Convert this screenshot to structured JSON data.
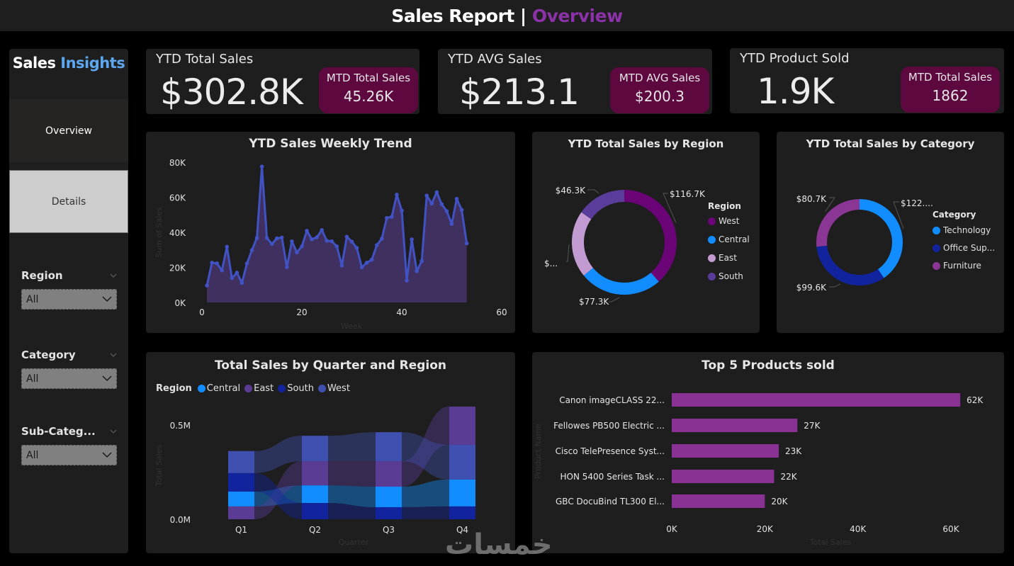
{
  "header": {
    "title_main": "Sales Report |",
    "title_accent": "Overview"
  },
  "sidebar": {
    "brand_main": "Sales",
    "brand_accent": "Insights",
    "nav": [
      {
        "label": "Overview"
      },
      {
        "label": "Details"
      }
    ],
    "slicers": [
      {
        "label": "Region",
        "value": "All"
      },
      {
        "label": "Category",
        "value": "All"
      },
      {
        "label": "Sub-Categ...",
        "value": "All"
      }
    ]
  },
  "kpis": [
    {
      "title": "YTD Total Sales",
      "value": "$302.8K",
      "badge_title": "MTD Total Sales",
      "badge_value": "45.26K"
    },
    {
      "title": "YTD AVG Sales",
      "value": "$213.1",
      "badge_title": "MTD AVG Sales",
      "badge_value": "$200.3"
    },
    {
      "title": "YTD Product Sold",
      "value": "1.9K",
      "badge_title": "MTD Total Sales",
      "badge_value": "1862"
    }
  ],
  "colors": {
    "accent_purple": "#8b32a8",
    "accent_blue": "#5ca7f0",
    "badge": "#5e0840",
    "line": "#4153c4",
    "area": "#40305f",
    "west": "#6a0477",
    "central": "#118dff",
    "east": "#c39bd3",
    "south": "#5a3d9a",
    "technology": "#118dff",
    "office_supplies": "#12239e",
    "furniture": "#8a3694",
    "bar": "#8a3194",
    "ribbon_central": "#118dff",
    "ribbon_east": "#5b3c95",
    "ribbon_south": "#12239e",
    "ribbon_west": "#4050b0"
  },
  "chart_data": [
    {
      "id": "weekly_trend",
      "type": "area",
      "title": "YTD Sales Weekly Trend",
      "xlabel": "Week",
      "ylabel": "Sum of Sales",
      "xlim": [
        0,
        60
      ],
      "ylim": [
        0,
        80000
      ],
      "xticks": [
        0,
        20,
        40,
        60
      ],
      "yticks": [
        0,
        20000,
        40000,
        60000,
        80000
      ],
      "ytick_labels": [
        "0K",
        "20K",
        "40K",
        "60K",
        "80K"
      ],
      "x": [
        1,
        2,
        3,
        4,
        5,
        6,
        7,
        8,
        9,
        10,
        11,
        12,
        13,
        14,
        15,
        16,
        17,
        18,
        19,
        20,
        21,
        22,
        23,
        24,
        25,
        26,
        27,
        28,
        29,
        30,
        31,
        32,
        33,
        34,
        35,
        36,
        37,
        38,
        39,
        40,
        41,
        42,
        43,
        44,
        45,
        46,
        47,
        48,
        49,
        50,
        51,
        52,
        53
      ],
      "values": [
        9700,
        22700,
        22300,
        18300,
        31800,
        13900,
        17000,
        11200,
        22200,
        29800,
        36800,
        77500,
        36800,
        33400,
        36600,
        37000,
        20200,
        34900,
        28600,
        32000,
        40900,
        36000,
        37200,
        41300,
        35200,
        34900,
        32000,
        21100,
        37500,
        34700,
        31100,
        20100,
        22700,
        24400,
        32700,
        36400,
        48200,
        48900,
        61500,
        52400,
        12500,
        36000,
        17900,
        23600,
        61000,
        56400,
        62900,
        56000,
        52100,
        44800,
        59100,
        52800,
        33700
      ],
      "grid": false
    },
    {
      "id": "region_donut",
      "type": "pie",
      "title": "YTD Total Sales by Region",
      "legend_title": "Region",
      "legend_position": "right",
      "labels": [
        "West",
        "Central",
        "East",
        "South"
      ],
      "values": [
        116700,
        77300,
        62500,
        46300
      ],
      "data_labels": [
        "$116.7K",
        "$77.3K",
        "$...",
        "$46.3K"
      ]
    },
    {
      "id": "category_donut",
      "type": "pie",
      "title": "YTD Total Sales by Category",
      "legend_title": "Category",
      "legend_position": "right",
      "labels": [
        "Technology",
        "Office Sup...",
        "Furniture"
      ],
      "values": [
        122500,
        99600,
        80700
      ],
      "data_labels": [
        "$122....",
        "$99.6K",
        "$80.7K"
      ]
    },
    {
      "id": "quarter_region_ribbon",
      "type": "bar",
      "subtype": "ribbon-stacked",
      "title": "Total Sales by Quarter and Region",
      "legend_title": "Region",
      "legend_position": "top-left",
      "legend": [
        "Central",
        "East",
        "South",
        "West"
      ],
      "xlabel": "Quarter",
      "ylabel": "Total Sales",
      "categories": [
        "Q1",
        "Q2",
        "Q3",
        "Q4"
      ],
      "ylim": [
        0,
        600000
      ],
      "yticks": [
        0,
        500000
      ],
      "ytick_labels": [
        "0.0M",
        "0.5M"
      ],
      "stack_order_bottom_to_top": [
        [
          "East",
          "Central",
          "South",
          "West"
        ],
        [
          "South",
          "Central",
          "East",
          "West"
        ],
        [
          "South",
          "Central",
          "East",
          "West"
        ],
        [
          "South",
          "Central",
          "West",
          "East"
        ]
      ],
      "series": [
        {
          "name": "Central",
          "values": [
            79000,
            94000,
            109000,
            143000
          ]
        },
        {
          "name": "East",
          "values": [
            68000,
            128000,
            135000,
            203000
          ]
        },
        {
          "name": "South",
          "values": [
            98000,
            86000,
            64000,
            68000
          ]
        },
        {
          "name": "West",
          "values": [
            117000,
            135000,
            154000,
            184000
          ]
        }
      ]
    },
    {
      "id": "top5_products",
      "type": "bar",
      "orientation": "horizontal",
      "title": "Top 5 Products sold",
      "xlabel": "Total Sales",
      "ylabel": "Product Name",
      "categories": [
        "Canon imageCLASS 22...",
        "Fellowes PB500 Electric ...",
        "Cisco TelePresence Syst...",
        "HON 5400 Series Task ...",
        "GBC DocuBind TL300 El..."
      ],
      "values": [
        62000,
        27000,
        23000,
        22000,
        20000
      ],
      "data_labels": [
        "62K",
        "27K",
        "23K",
        "22K",
        "20K"
      ],
      "xlim": [
        0,
        65000
      ],
      "xticks": [
        0,
        20000,
        40000,
        60000
      ],
      "xtick_labels": [
        "0K",
        "20K",
        "40K",
        "60K"
      ]
    }
  ],
  "watermark": "خمسات"
}
